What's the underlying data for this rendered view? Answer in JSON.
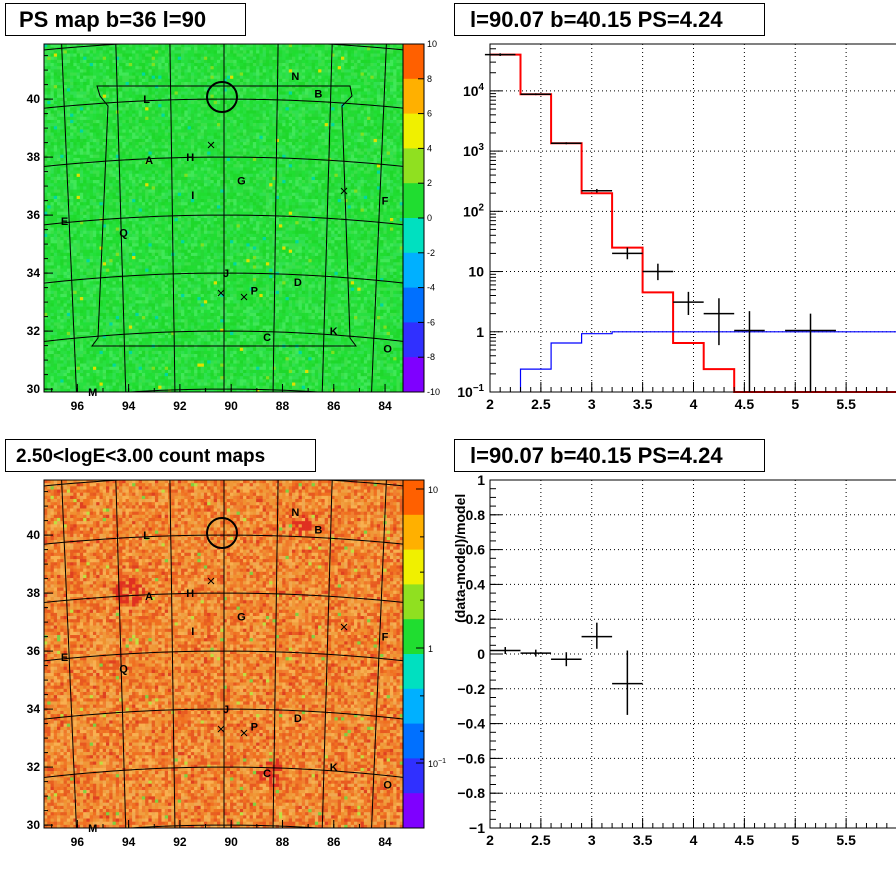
{
  "panels": {
    "tl_title": "PS map b=36 l=90",
    "tr_title": "l=90.07 b=40.15 PS=4.24",
    "bl_title": "2.50<logE<3.00 count maps",
    "br_title": "l=90.07 b=40.15 PS=4.24"
  },
  "chart_data": [
    {
      "type": "heatmap",
      "title": "PS map b=36 l=90",
      "x_ticks": [
        "96",
        "94",
        "92",
        "90",
        "88",
        "86",
        "84"
      ],
      "y_ticks": [
        "30",
        "32",
        "34",
        "36",
        "38",
        "40"
      ],
      "colorbar_ticks": [
        "10",
        "8",
        "6",
        "4",
        "2",
        "0",
        "-2",
        "-4",
        "-6",
        "-8",
        "-10"
      ],
      "colorbar_range": [
        -10,
        10
      ],
      "dominant_value": 0,
      "labels": [
        "N",
        "B",
        "L",
        "A",
        "H",
        "G",
        "I",
        "F",
        "E",
        "Q",
        "J",
        "D",
        "P",
        "K",
        "C",
        "O",
        "M"
      ],
      "colors": {
        "background_field": "#22dd33"
      }
    },
    {
      "type": "line",
      "title": "l=90.07 b=40.15 PS=4.24",
      "scale": "log-y",
      "xlim": [
        2,
        6
      ],
      "ylim": [
        0.1,
        60000
      ],
      "x_ticks": [
        "2",
        "2.5",
        "3",
        "3.5",
        "4",
        "4.5",
        "5",
        "5.5"
      ],
      "y_ticks": [
        {
          "mant": "10",
          "exp": "4"
        },
        {
          "mant": "10",
          "exp": "3"
        },
        {
          "mant": "10",
          "exp": "2"
        },
        {
          "mant": "10",
          "exp": ""
        },
        {
          "mant": "1",
          "exp": ""
        },
        {
          "mant": "10",
          "exp": "−1"
        }
      ],
      "grid": true,
      "series": [
        {
          "color": "#ff0000",
          "style": "step",
          "edges": [
            2.0,
            2.3,
            2.6,
            2.9,
            3.2,
            3.5,
            3.8,
            4.1,
            4.4,
            6.0
          ],
          "values": [
            40000,
            8800,
            1350,
            200,
            25,
            4.5,
            0.65,
            0.24,
            0.1
          ]
        },
        {
          "color": "#0000ff",
          "style": "step",
          "edges": [
            2.3,
            2.6,
            2.9,
            3.2,
            3.5,
            4.1,
            6.0
          ],
          "values": [
            0.24,
            0.65,
            0.93,
            1.0,
            1.0,
            1.0
          ]
        },
        {
          "color": "#000000",
          "style": "errorbar",
          "points": [
            {
              "x": 2.1,
              "y": 40000,
              "xerr": 0.15,
              "ylo": 38000,
              "yhi": 42000
            },
            {
              "x": 2.45,
              "y": 8800,
              "xerr": 0.15,
              "ylo": 8500,
              "yhi": 9100
            },
            {
              "x": 2.75,
              "y": 1350,
              "xerr": 0.15,
              "ylo": 1300,
              "yhi": 1400
            },
            {
              "x": 3.05,
              "y": 220,
              "xerr": 0.15,
              "ylo": 205,
              "yhi": 235
            },
            {
              "x": 3.35,
              "y": 20,
              "xerr": 0.15,
              "ylo": 16,
              "yhi": 25
            },
            {
              "x": 3.65,
              "y": 10,
              "xerr": 0.15,
              "ylo": 7.2,
              "yhi": 13.5
            },
            {
              "x": 3.95,
              "y": 3.1,
              "xerr": 0.15,
              "ylo": 1.9,
              "yhi": 4.6
            },
            {
              "x": 4.25,
              "y": 2.0,
              "xerr": 0.15,
              "ylo": 0.6,
              "yhi": 3.6
            },
            {
              "x": 4.55,
              "y": 1.05,
              "xerr": 0.15,
              "ylo": 0.1,
              "yhi": 2.2
            },
            {
              "x": 5.15,
              "y": 1.05,
              "xerr": 0.25,
              "ylo": 0.1,
              "yhi": 2.0
            }
          ]
        }
      ]
    },
    {
      "type": "heatmap",
      "title": "2.50<logE<3.00 count maps",
      "x_ticks": [
        "96",
        "94",
        "92",
        "90",
        "88",
        "86",
        "84"
      ],
      "y_ticks": [
        "30",
        "32",
        "34",
        "36",
        "38",
        "40"
      ],
      "colorbar_ticks": [
        {
          "mant": "10",
          "exp": ""
        },
        {
          "mant": "1",
          "exp": ""
        },
        {
          "mant": "10",
          "exp": "−1"
        }
      ],
      "colorbar_scale": "log",
      "labels": [
        "N",
        "B",
        "L",
        "A",
        "H",
        "G",
        "I",
        "F",
        "E",
        "Q",
        "J",
        "D",
        "P",
        "K",
        "C",
        "O",
        "M"
      ],
      "colors": {
        "background_field": "#f08030"
      }
    },
    {
      "type": "scatter",
      "title": "l=90.07 b=40.15 PS=4.24",
      "ylabel": "(data-model)/model",
      "xlim": [
        2,
        6
      ],
      "ylim": [
        -1,
        1
      ],
      "x_ticks": [
        "2",
        "2.5",
        "3",
        "3.5",
        "4",
        "4.5",
        "5",
        "5.5"
      ],
      "y_ticks": [
        "1",
        "0.8",
        "0.6",
        "0.4",
        "0.2",
        "0",
        "−0.2",
        "−0.4",
        "−0.6",
        "−0.8",
        "−1"
      ],
      "grid": true,
      "points": [
        {
          "x": 2.15,
          "y": 0.02,
          "xerr": 0.15,
          "ylo": 0.0,
          "yhi": 0.04
        },
        {
          "x": 2.45,
          "y": 0.005,
          "xerr": 0.15,
          "ylo": -0.015,
          "yhi": 0.025
        },
        {
          "x": 2.75,
          "y": -0.03,
          "xerr": 0.15,
          "ylo": -0.07,
          "yhi": 0.01
        },
        {
          "x": 3.05,
          "y": 0.1,
          "xerr": 0.15,
          "ylo": 0.03,
          "yhi": 0.18
        },
        {
          "x": 3.35,
          "y": -0.17,
          "xerr": 0.15,
          "ylo": -0.35,
          "yhi": 0.02
        }
      ]
    }
  ]
}
